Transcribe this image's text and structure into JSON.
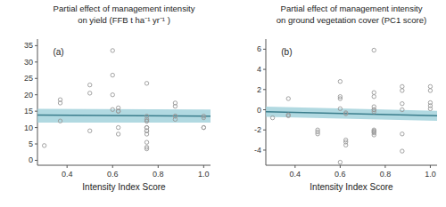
{
  "chart_data": [
    {
      "type": "scatter",
      "title": "Partial effect of management intensity",
      "subtitle": "on yield (FFB t ha⁻¹ yr⁻¹ )",
      "x_label": "Intensity Index Score",
      "annotations": [
        "(a)"
      ],
      "xlim": [
        0.27,
        1.03
      ],
      "xticks": [
        0.4,
        0.6,
        0.8,
        {
          "value": 1.0,
          "label": "1.0"
        }
      ],
      "ylim": [
        -1.5,
        37
      ],
      "yticks": [
        0,
        5,
        10,
        15,
        20,
        25,
        30,
        35
      ],
      "series": [
        {
          "type": "area",
          "color": "#9ecfda",
          "x": [
            0.27,
            1.03
          ],
          "upper": [
            15.7,
            15.5
          ],
          "lower": [
            11.5,
            11.5
          ]
        },
        {
          "type": "line",
          "color": "#3a7d8c",
          "x": [
            0.27,
            1.03
          ],
          "values": [
            13.8,
            13.5
          ]
        },
        {
          "type": "scatter",
          "color": "#999999",
          "marker": "open-circle",
          "x": [
            0.3,
            0.37,
            0.37,
            0.37,
            0.5,
            0.5,
            0.5,
            0.6,
            0.6,
            0.6,
            0.6,
            0.625,
            0.625,
            0.625,
            0.625,
            0.625,
            0.75,
            0.75,
            0.75,
            0.75,
            0.75,
            0.75,
            0.75,
            0.75,
            0.75,
            0.75,
            0.75,
            0.75,
            0.75,
            0.875,
            0.875,
            0.875,
            0.875,
            0.875,
            1.0,
            1.0,
            1.0,
            1.0
          ],
          "values": [
            4.5,
            18.5,
            17.5,
            12.0,
            23.0,
            9.0,
            20.5,
            33.5,
            15.5,
            26.0,
            20.0,
            10.0,
            16.0,
            15.0,
            8.0,
            15.0,
            4.0,
            5.5,
            8.0,
            10.0,
            10.0,
            9.0,
            12.0,
            9.0,
            23.5,
            13.5,
            12.0,
            3.5,
            12.5,
            13.5,
            17.5,
            12.5,
            13.5,
            16.5,
            10.0,
            13.0,
            13.5,
            10.0
          ]
        }
      ]
    },
    {
      "type": "scatter",
      "title": "Partial effect of management intensity",
      "subtitle": "on ground vegetation cover (PC1 score)",
      "x_label": "Intensity Index Score",
      "annotations": [
        "(b)"
      ],
      "xlim": [
        0.27,
        1.03
      ],
      "xticks": [
        0.4,
        0.6,
        0.8,
        {
          "value": 1.0,
          "label": "1.0"
        }
      ],
      "ylim": [
        -5.5,
        7
      ],
      "yticks": [
        -4,
        -2,
        0,
        2,
        4,
        6
      ],
      "series": [
        {
          "type": "area",
          "color": "#9ecfda",
          "x": [
            0.27,
            1.03
          ],
          "upper": [
            0.3,
            -0.1
          ],
          "lower": [
            -0.7,
            -1.1
          ]
        },
        {
          "type": "line",
          "color": "#3a7d8c",
          "x": [
            0.27,
            1.03
          ],
          "values": [
            -0.2,
            -0.6
          ]
        },
        {
          "type": "scatter",
          "color": "#999999",
          "marker": "open-circle",
          "x": [
            0.3,
            0.37,
            0.37,
            0.37,
            0.5,
            0.5,
            0.5,
            0.6,
            0.6,
            0.6,
            0.6,
            0.6,
            0.625,
            0.625,
            0.625,
            0.625,
            0.625,
            0.75,
            0.75,
            0.75,
            0.75,
            0.75,
            0.75,
            0.75,
            0.75,
            0.75,
            0.75,
            0.75,
            0.75,
            0.875,
            0.875,
            0.875,
            0.875,
            0.875,
            0.875,
            1.0,
            1.0,
            1.0,
            1.0,
            1.0
          ],
          "values": [
            -0.8,
            1.1,
            -0.5,
            -0.6,
            -2.2,
            -2.0,
            -2.4,
            2.8,
            0.1,
            1.3,
            1.1,
            -5.2,
            -0.4,
            -3.0,
            -3.2,
            -3.5,
            -0.3,
            5.9,
            1.7,
            1.3,
            0.3,
            0.0,
            -0.2,
            -2.1,
            -2.2,
            -2.3,
            0.0,
            -2.5,
            -2.0,
            -4.1,
            -2.4,
            2.3,
            0.6,
            1.9,
            0.0,
            2.3,
            0.7,
            1.9,
            0.4,
            0.1
          ]
        }
      ]
    }
  ]
}
